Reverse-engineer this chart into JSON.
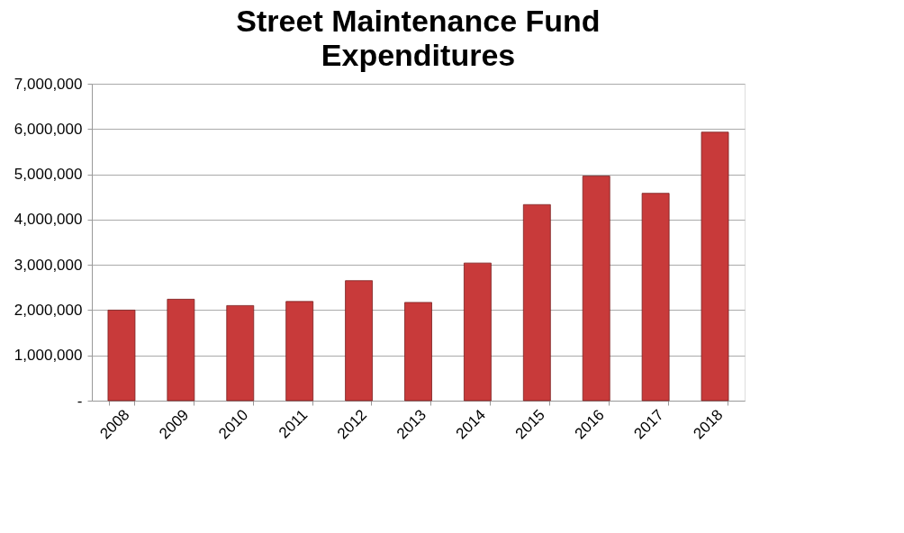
{
  "chart_data": {
    "type": "bar",
    "title": "Street Maintenance Fund Expenditures",
    "categories": [
      "2008",
      "2009",
      "2010",
      "2011",
      "2012",
      "2013",
      "2014",
      "2015",
      "2016",
      "2017",
      "2018"
    ],
    "values": [
      2000000,
      2240000,
      2100000,
      2190000,
      2650000,
      2170000,
      3040000,
      4330000,
      4960000,
      4580000,
      5930000
    ],
    "color": "#c83a3a",
    "ylim": [
      0,
      7000000
    ],
    "yticks": [
      {
        "value": 0,
        "label": "-"
      },
      {
        "value": 1000000,
        "label": "1,000,000"
      },
      {
        "value": 2000000,
        "label": "2,000,000"
      },
      {
        "value": 3000000,
        "label": "3,000,000"
      },
      {
        "value": 4000000,
        "label": "4,000,000"
      },
      {
        "value": 5000000,
        "label": "5,000,000"
      },
      {
        "value": 6000000,
        "label": "6,000,000"
      },
      {
        "value": 7000000,
        "label": "7,000,000"
      }
    ],
    "grid": "y"
  }
}
